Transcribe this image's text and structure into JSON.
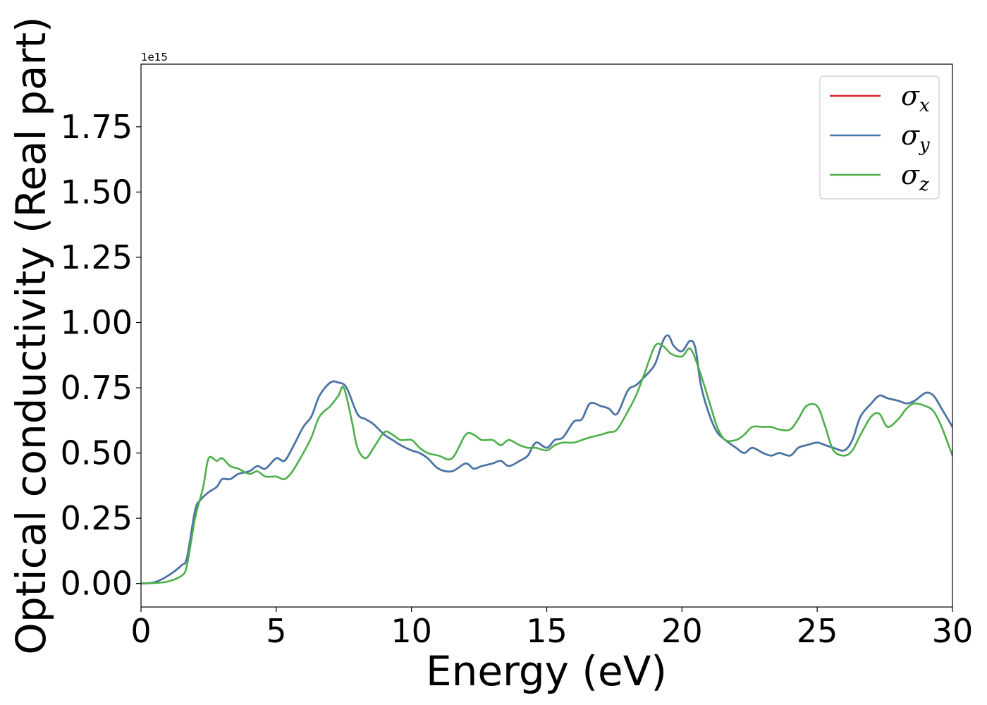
{
  "chart_data": {
    "type": "line",
    "title": "",
    "xlabel": "Energy (eV)",
    "ylabel": "Optical conductivity (Real part)",
    "y_scale_label": "1e15",
    "xlim": [
      0,
      30
    ],
    "ylim": [
      -0.09,
      1.99
    ],
    "x_ticks": [
      "0",
      "5",
      "10",
      "15",
      "20",
      "25",
      "30"
    ],
    "y_ticks": [
      "0.00",
      "0.25",
      "0.50",
      "0.75",
      "1.00",
      "1.25",
      "1.50",
      "1.75"
    ],
    "grid": false,
    "legend_position": "top-right",
    "series": [
      {
        "name": "σ",
        "subscript": "x",
        "color": "#d62728",
        "x": [
          0,
          0.5,
          1.0,
          1.5,
          1.7,
          2.0,
          2.2,
          2.5,
          2.8,
          3.0,
          3.3,
          3.6,
          4.0,
          4.3,
          4.6,
          5.0,
          5.3,
          5.6,
          6.0,
          6.3,
          6.6,
          7.0,
          7.3,
          7.6,
          8.0,
          8.3,
          8.6,
          9.0,
          9.3,
          9.6,
          10.0,
          10.3,
          10.6,
          11.0,
          11.5,
          12.0,
          12.3,
          12.6,
          13.0,
          13.3,
          13.6,
          14.0,
          14.3,
          14.6,
          15.0,
          15.3,
          15.6,
          16.0,
          16.3,
          16.6,
          17.0,
          17.3,
          17.6,
          18.0,
          18.3,
          18.6,
          19.0,
          19.3,
          19.5,
          19.7,
          20.0,
          20.3,
          20.5,
          20.7,
          21.0,
          21.3,
          21.6,
          22.0,
          22.3,
          22.6,
          23.0,
          23.3,
          23.6,
          24.0,
          24.3,
          24.6,
          25.0,
          25.3,
          25.6,
          26.0,
          26.3,
          26.6,
          27.0,
          27.3,
          27.6,
          28.0,
          28.3,
          28.6,
          29.0,
          29.3,
          29.6,
          30.0
        ],
        "values": [
          0.0,
          0.005,
          0.03,
          0.07,
          0.1,
          0.28,
          0.32,
          0.35,
          0.37,
          0.4,
          0.4,
          0.42,
          0.43,
          0.45,
          0.44,
          0.48,
          0.47,
          0.52,
          0.6,
          0.64,
          0.72,
          0.77,
          0.77,
          0.75,
          0.65,
          0.63,
          0.61,
          0.57,
          0.55,
          0.53,
          0.51,
          0.5,
          0.48,
          0.44,
          0.43,
          0.46,
          0.44,
          0.45,
          0.46,
          0.47,
          0.45,
          0.47,
          0.49,
          0.54,
          0.52,
          0.55,
          0.56,
          0.62,
          0.63,
          0.69,
          0.68,
          0.67,
          0.65,
          0.74,
          0.76,
          0.79,
          0.84,
          0.93,
          0.95,
          0.91,
          0.89,
          0.93,
          0.9,
          0.76,
          0.65,
          0.58,
          0.55,
          0.52,
          0.5,
          0.52,
          0.5,
          0.49,
          0.5,
          0.49,
          0.52,
          0.53,
          0.54,
          0.53,
          0.52,
          0.51,
          0.55,
          0.64,
          0.69,
          0.72,
          0.71,
          0.7,
          0.69,
          0.7,
          0.73,
          0.72,
          0.67,
          0.6
        ]
      },
      {
        "name": "σ",
        "subscript": "y",
        "color": "#4477aa",
        "x": [
          0,
          0.5,
          1.0,
          1.5,
          1.7,
          2.0,
          2.2,
          2.5,
          2.8,
          3.0,
          3.3,
          3.6,
          4.0,
          4.3,
          4.6,
          5.0,
          5.3,
          5.6,
          6.0,
          6.3,
          6.6,
          7.0,
          7.3,
          7.6,
          8.0,
          8.3,
          8.6,
          9.0,
          9.3,
          9.6,
          10.0,
          10.3,
          10.6,
          11.0,
          11.5,
          12.0,
          12.3,
          12.6,
          13.0,
          13.3,
          13.6,
          14.0,
          14.3,
          14.6,
          15.0,
          15.3,
          15.6,
          16.0,
          16.3,
          16.6,
          17.0,
          17.3,
          17.6,
          18.0,
          18.3,
          18.6,
          19.0,
          19.3,
          19.5,
          19.7,
          20.0,
          20.3,
          20.5,
          20.7,
          21.0,
          21.3,
          21.6,
          22.0,
          22.3,
          22.6,
          23.0,
          23.3,
          23.6,
          24.0,
          24.3,
          24.6,
          25.0,
          25.3,
          25.6,
          26.0,
          26.3,
          26.6,
          27.0,
          27.3,
          27.6,
          28.0,
          28.3,
          28.6,
          29.0,
          29.3,
          29.6,
          30.0
        ],
        "values": [
          0.0,
          0.005,
          0.03,
          0.07,
          0.1,
          0.28,
          0.32,
          0.35,
          0.37,
          0.4,
          0.4,
          0.42,
          0.43,
          0.45,
          0.44,
          0.48,
          0.47,
          0.52,
          0.6,
          0.64,
          0.72,
          0.77,
          0.77,
          0.75,
          0.65,
          0.63,
          0.61,
          0.57,
          0.55,
          0.53,
          0.51,
          0.5,
          0.48,
          0.44,
          0.43,
          0.46,
          0.44,
          0.45,
          0.46,
          0.47,
          0.45,
          0.47,
          0.49,
          0.54,
          0.52,
          0.55,
          0.56,
          0.62,
          0.63,
          0.69,
          0.68,
          0.67,
          0.65,
          0.74,
          0.76,
          0.79,
          0.84,
          0.93,
          0.95,
          0.91,
          0.89,
          0.93,
          0.9,
          0.76,
          0.65,
          0.58,
          0.55,
          0.52,
          0.5,
          0.52,
          0.5,
          0.49,
          0.5,
          0.49,
          0.52,
          0.53,
          0.54,
          0.53,
          0.52,
          0.51,
          0.55,
          0.64,
          0.69,
          0.72,
          0.71,
          0.7,
          0.69,
          0.7,
          0.73,
          0.72,
          0.67,
          0.6
        ]
      },
      {
        "name": "σ",
        "subscript": "z",
        "color": "#4daf4a",
        "x": [
          0,
          0.5,
          1.0,
          1.5,
          1.7,
          2.0,
          2.3,
          2.5,
          2.8,
          3.0,
          3.3,
          3.6,
          4.0,
          4.3,
          4.6,
          5.0,
          5.3,
          5.6,
          6.0,
          6.3,
          6.6,
          7.0,
          7.3,
          7.5,
          7.8,
          8.0,
          8.3,
          8.6,
          9.0,
          9.3,
          9.6,
          10.0,
          10.3,
          10.6,
          11.0,
          11.5,
          12.0,
          12.3,
          12.6,
          13.0,
          13.3,
          13.6,
          14.0,
          14.3,
          14.6,
          15.0,
          15.3,
          15.6,
          16.0,
          16.3,
          16.6,
          17.0,
          17.3,
          17.6,
          18.0,
          18.3,
          18.6,
          19.0,
          19.3,
          19.6,
          20.0,
          20.3,
          20.6,
          21.0,
          21.3,
          21.6,
          22.0,
          22.3,
          22.6,
          23.0,
          23.3,
          23.6,
          24.0,
          24.3,
          24.6,
          25.0,
          25.3,
          25.6,
          26.0,
          26.3,
          26.6,
          27.0,
          27.3,
          27.6,
          28.0,
          28.3,
          28.6,
          29.0,
          29.3,
          29.6,
          30.0
        ],
        "values": [
          0.0,
          0.002,
          0.008,
          0.03,
          0.07,
          0.25,
          0.37,
          0.48,
          0.47,
          0.48,
          0.45,
          0.44,
          0.42,
          0.43,
          0.41,
          0.41,
          0.4,
          0.43,
          0.5,
          0.56,
          0.64,
          0.68,
          0.72,
          0.75,
          0.62,
          0.52,
          0.48,
          0.52,
          0.58,
          0.57,
          0.55,
          0.55,
          0.52,
          0.5,
          0.49,
          0.48,
          0.57,
          0.57,
          0.55,
          0.55,
          0.53,
          0.55,
          0.53,
          0.52,
          0.52,
          0.51,
          0.53,
          0.54,
          0.54,
          0.55,
          0.56,
          0.57,
          0.58,
          0.59,
          0.66,
          0.72,
          0.8,
          0.91,
          0.91,
          0.88,
          0.87,
          0.9,
          0.83,
          0.7,
          0.6,
          0.55,
          0.55,
          0.57,
          0.6,
          0.6,
          0.6,
          0.59,
          0.59,
          0.63,
          0.68,
          0.68,
          0.6,
          0.51,
          0.49,
          0.51,
          0.57,
          0.64,
          0.65,
          0.6,
          0.63,
          0.67,
          0.69,
          0.68,
          0.66,
          0.6,
          0.49
        ]
      }
    ]
  }
}
